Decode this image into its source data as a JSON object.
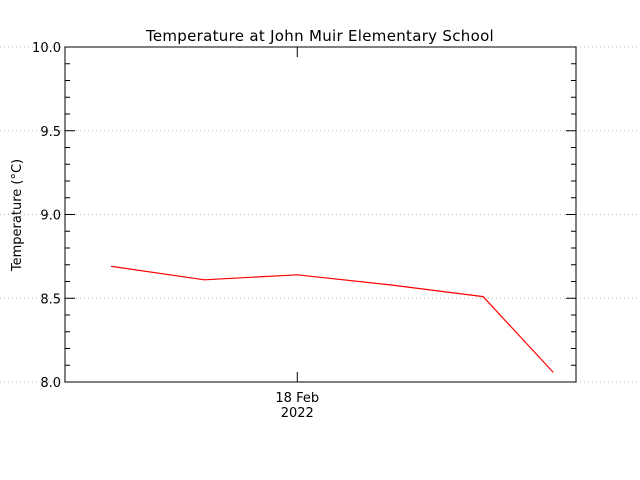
{
  "chart_data": {
    "type": "line",
    "title": "Temperature at John Muir Elementary School",
    "ylabel": "Temperature (°C)",
    "xlabel": "",
    "ylim": [
      8.0,
      10.0
    ],
    "yticks": [
      "8.0",
      "8.5",
      "9.0",
      "9.5",
      "10.0"
    ],
    "ytick_values": [
      8.0,
      8.5,
      9.0,
      9.5,
      10.0
    ],
    "xlim": [
      "2022-02-17T23:10",
      "2022-02-18T01:00"
    ],
    "xtick": {
      "value": "2022-02-18T00:00",
      "line1": "18 Feb",
      "line2": "2022"
    },
    "grid": "horizontal dotted",
    "series": [
      {
        "color": "#ff0000",
        "x": [
          "2022-02-17T23:20",
          "2022-02-17T23:40",
          "2022-02-18T00:00",
          "2022-02-18T00:20",
          "2022-02-18T00:40",
          "2022-02-18T00:55"
        ],
        "y": [
          8.69,
          8.61,
          8.64,
          8.58,
          8.51,
          8.06
        ]
      }
    ]
  }
}
